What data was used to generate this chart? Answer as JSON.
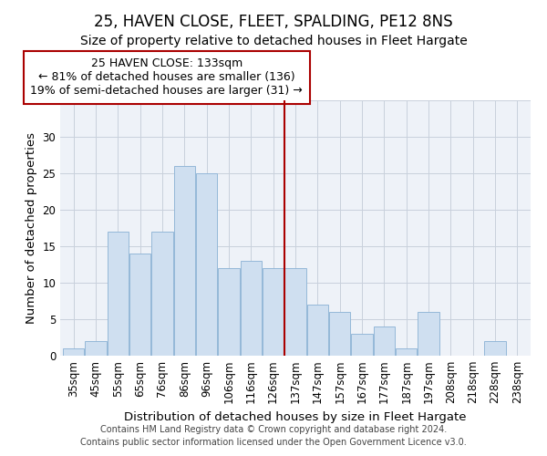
{
  "title": "25, HAVEN CLOSE, FLEET, SPALDING, PE12 8NS",
  "subtitle": "Size of property relative to detached houses in Fleet Hargate",
  "xlabel": "Distribution of detached houses by size in Fleet Hargate",
  "ylabel": "Number of detached properties",
  "categories": [
    "35sqm",
    "45sqm",
    "55sqm",
    "65sqm",
    "76sqm",
    "86sqm",
    "96sqm",
    "106sqm",
    "116sqm",
    "126sqm",
    "137sqm",
    "147sqm",
    "157sqm",
    "167sqm",
    "177sqm",
    "187sqm",
    "197sqm",
    "208sqm",
    "218sqm",
    "228sqm",
    "238sqm"
  ],
  "values": [
    1,
    2,
    17,
    14,
    17,
    26,
    25,
    12,
    13,
    12,
    12,
    7,
    6,
    3,
    4,
    1,
    6,
    0,
    0,
    2,
    0
  ],
  "bar_color": "#cfdff0",
  "bar_edge_color": "#94b8d8",
  "vline_x_index": 10,
  "vline_color": "#aa0000",
  "ylim": [
    0,
    35
  ],
  "yticks": [
    0,
    5,
    10,
    15,
    20,
    25,
    30,
    35
  ],
  "annotation_title": "25 HAVEN CLOSE: 133sqm",
  "annotation_line1": "← 81% of detached houses are smaller (136)",
  "annotation_line2": "19% of semi-detached houses are larger (31) →",
  "annotation_box_color": "#ffffff",
  "annotation_box_edge_color": "#aa0000",
  "footer_line1": "Contains HM Land Registry data © Crown copyright and database right 2024.",
  "footer_line2": "Contains public sector information licensed under the Open Government Licence v3.0.",
  "title_fontsize": 12,
  "subtitle_fontsize": 10,
  "axis_label_fontsize": 9.5,
  "tick_fontsize": 8.5,
  "annotation_fontsize": 9,
  "footer_fontsize": 7
}
